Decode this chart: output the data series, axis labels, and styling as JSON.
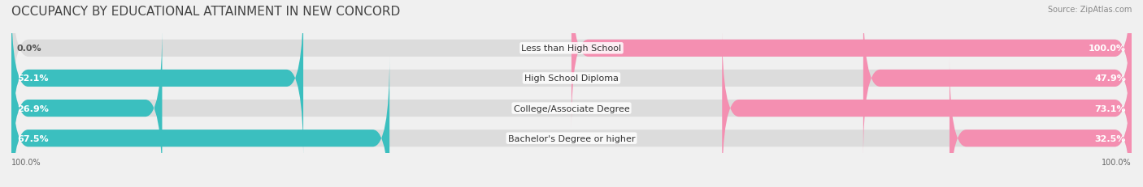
{
  "title": "OCCUPANCY BY EDUCATIONAL ATTAINMENT IN NEW CONCORD",
  "source": "Source: ZipAtlas.com",
  "categories": [
    "Less than High School",
    "High School Diploma",
    "College/Associate Degree",
    "Bachelor's Degree or higher"
  ],
  "owner_pct": [
    0.0,
    52.1,
    26.9,
    67.5
  ],
  "renter_pct": [
    100.0,
    47.9,
    73.1,
    32.5
  ],
  "owner_color": "#3bbfbf",
  "renter_color": "#f48fb1",
  "bg_color": "#f0f0f0",
  "bar_bg_color": "#e0e0e0",
  "title_fontsize": 11,
  "label_fontsize": 8,
  "bar_height": 0.55,
  "bar_gap": 0.25
}
